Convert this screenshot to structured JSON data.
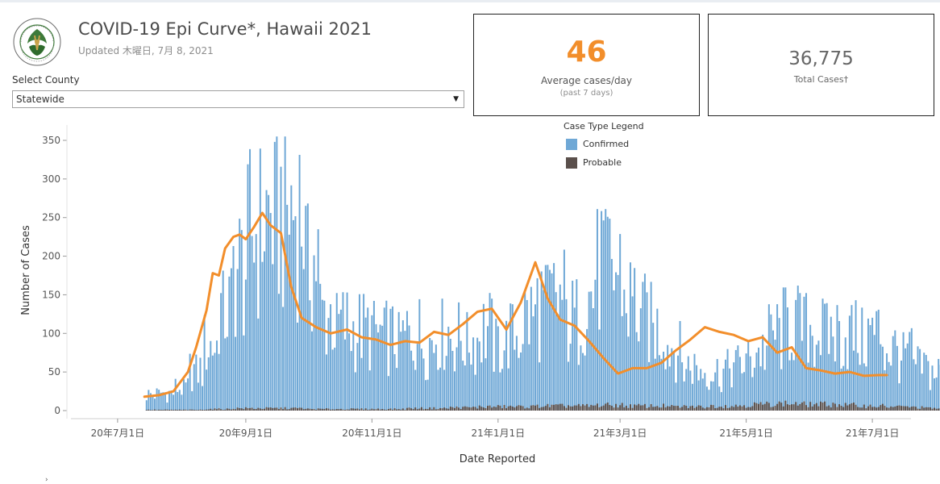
{
  "header": {
    "title": "COVID-19 Epi Curve*, Hawaii 2021",
    "updated": "Updated 木曜日, 7月 8, 2021",
    "logo_icon": "state-of-hawaii-department-of-health-seal-icon",
    "logo_text": "HAWAII STATE DEPARTMENT OF HEALTH"
  },
  "filter": {
    "label": "Select County",
    "value": "Statewide"
  },
  "kpi": {
    "average_value": "46",
    "average_label": "Average cases/day",
    "average_note": "(past 7 days)",
    "total_value": "36,775",
    "total_label": "Total Cases†"
  },
  "legend": {
    "title": "Case Type Legend",
    "items": [
      {
        "label": "Confirmed",
        "color": "#6fa8d6"
      },
      {
        "label": "Probable",
        "color": "#5a4f4b"
      }
    ]
  },
  "colors": {
    "confirmed": "#6fa8d6",
    "probable": "#5a4f4b",
    "average_line": "#f28e2b",
    "average_big": "#f28e2b"
  },
  "chart_data": {
    "type": "bar",
    "title": "",
    "xlabel": "Date Reported",
    "ylabel": "Number of Cases",
    "ylim": [
      0,
      370
    ],
    "yticks": [
      0,
      50,
      100,
      150,
      200,
      250,
      300,
      350
    ],
    "xlim": [
      "2020-06-10",
      "2021-07-15"
    ],
    "xticks": [
      {
        "date": "2020-07-01",
        "label": "20年7月1日"
      },
      {
        "date": "2020-09-01",
        "label": "20年9月1日"
      },
      {
        "date": "2020-11-01",
        "label": "20年11月1日"
      },
      {
        "date": "2021-01-01",
        "label": "21年1月1日"
      },
      {
        "date": "2021-03-01",
        "label": "21年3月1日"
      },
      {
        "date": "2021-05-01",
        "label": "21年5月1日"
      },
      {
        "date": "2021-07-01",
        "label": "21年7月1日"
      }
    ],
    "series": [
      {
        "name": "Confirmed",
        "start_date": "2020-07-15",
        "weekly_daily_average": [
          20,
          22,
          28,
          50,
          80,
          125,
          175,
          220,
          240,
          245,
          250,
          185,
          120,
          105,
          100,
          98,
          92,
          88,
          95,
          85,
          100,
          90,
          88,
          100,
          82,
          95,
          115,
          130,
          135,
          110,
          140,
          180,
          170,
          135,
          115,
          100,
          80,
          55,
          50,
          48,
          55,
          60,
          75,
          95,
          110,
          105,
          100,
          96,
          95,
          92,
          95,
          75,
          70,
          55,
          48,
          52,
          50,
          46,
          42,
          44,
          45
        ]
      },
      {
        "name": "Probable",
        "start_date": "2020-07-15",
        "weekly_daily_average": [
          1,
          1,
          1,
          1,
          2,
          2,
          3,
          3,
          3,
          3,
          3,
          2,
          2,
          2,
          2,
          2,
          2,
          2,
          3,
          3,
          3,
          4,
          4,
          5,
          5,
          5,
          5,
          6,
          6,
          6,
          6,
          7,
          7,
          6,
          6,
          6,
          5,
          5,
          5,
          6,
          6,
          7,
          8,
          9,
          9,
          8,
          8,
          8,
          7,
          6,
          6,
          5,
          5,
          4,
          3,
          3,
          3,
          2,
          2,
          2,
          2
        ]
      },
      {
        "name": "Average",
        "points": [
          [
            "2020-07-14",
            18
          ],
          [
            "2020-07-21",
            20
          ],
          [
            "2020-07-28",
            25
          ],
          [
            "2020-08-04",
            50
          ],
          [
            "2020-08-08",
            82
          ],
          [
            "2020-08-13",
            130
          ],
          [
            "2020-08-16",
            178
          ],
          [
            "2020-08-19",
            175
          ],
          [
            "2020-08-22",
            210
          ],
          [
            "2020-08-26",
            225
          ],
          [
            "2020-08-29",
            228
          ],
          [
            "2020-09-01",
            222
          ],
          [
            "2020-09-05",
            238
          ],
          [
            "2020-09-09",
            256
          ],
          [
            "2020-09-13",
            240
          ],
          [
            "2020-09-18",
            230
          ],
          [
            "2020-09-23",
            160
          ],
          [
            "2020-09-28",
            120
          ],
          [
            "2020-10-05",
            108
          ],
          [
            "2020-10-12",
            100
          ],
          [
            "2020-10-20",
            105
          ],
          [
            "2020-10-27",
            95
          ],
          [
            "2020-11-03",
            92
          ],
          [
            "2020-11-10",
            85
          ],
          [
            "2020-11-17",
            90
          ],
          [
            "2020-11-24",
            88
          ],
          [
            "2020-12-01",
            102
          ],
          [
            "2020-12-08",
            98
          ],
          [
            "2020-12-15",
            112
          ],
          [
            "2020-12-22",
            128
          ],
          [
            "2020-12-29",
            132
          ],
          [
            "2021-01-05",
            105
          ],
          [
            "2021-01-12",
            140
          ],
          [
            "2021-01-19",
            192
          ],
          [
            "2021-01-25",
            145
          ],
          [
            "2021-01-31",
            118
          ],
          [
            "2021-02-07",
            110
          ],
          [
            "2021-02-14",
            90
          ],
          [
            "2021-02-21",
            68
          ],
          [
            "2021-02-28",
            48
          ],
          [
            "2021-03-07",
            55
          ],
          [
            "2021-03-14",
            55
          ],
          [
            "2021-03-21",
            62
          ],
          [
            "2021-03-28",
            78
          ],
          [
            "2021-04-04",
            92
          ],
          [
            "2021-04-11",
            108
          ],
          [
            "2021-04-18",
            102
          ],
          [
            "2021-04-25",
            98
          ],
          [
            "2021-05-02",
            90
          ],
          [
            "2021-05-09",
            95
          ],
          [
            "2021-05-16",
            75
          ],
          [
            "2021-05-23",
            82
          ],
          [
            "2021-05-30",
            55
          ],
          [
            "2021-06-06",
            52
          ],
          [
            "2021-06-13",
            48
          ],
          [
            "2021-06-20",
            50
          ],
          [
            "2021-06-27",
            45
          ],
          [
            "2021-07-04",
            46
          ],
          [
            "2021-07-08",
            46
          ]
        ]
      }
    ],
    "grid": false,
    "legend_position": "top-right"
  }
}
